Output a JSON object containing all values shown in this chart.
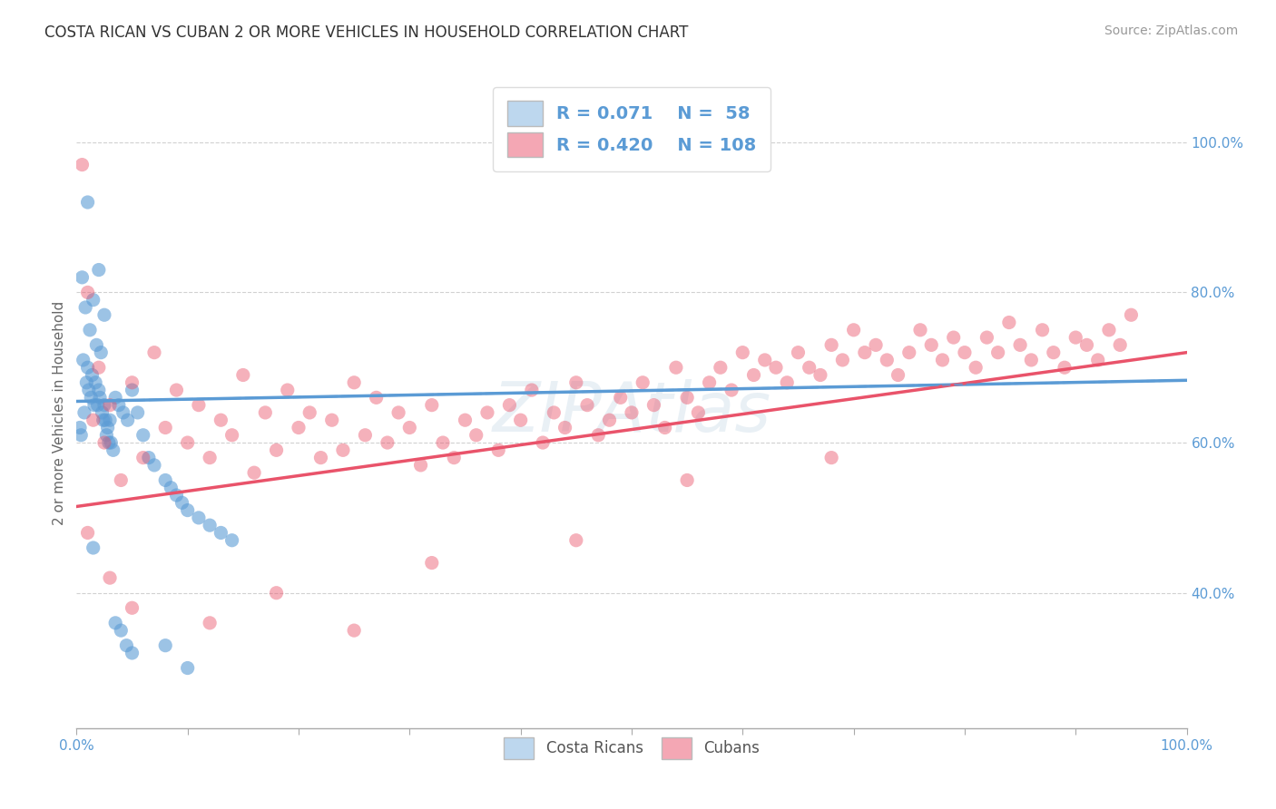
{
  "title": "COSTA RICAN VS CUBAN 2 OR MORE VEHICLES IN HOUSEHOLD CORRELATION CHART",
  "source": "Source: ZipAtlas.com",
  "ylabel": "2 or more Vehicles in Household",
  "xlim": [
    0.0,
    1.0
  ],
  "ylim": [
    0.22,
    1.06
  ],
  "y_ticks": [
    0.4,
    0.6,
    0.8,
    1.0
  ],
  "y_tick_labels": [
    "40.0%",
    "60.0%",
    "80.0%",
    "100.0%"
  ],
  "blue_color": "#5b9bd5",
  "blue_fill": "#bdd7ee",
  "pink_color": "#e9536a",
  "pink_fill": "#f4a7b4",
  "blue_R": 0.071,
  "blue_N": 58,
  "pink_R": 0.42,
  "pink_N": 108,
  "background_color": "#ffffff",
  "grid_color": "#cccccc",
  "blue_x": [
    0.01,
    0.02,
    0.005,
    0.015,
    0.008,
    0.025,
    0.012,
    0.018,
    0.022,
    0.006,
    0.01,
    0.014,
    0.009,
    0.017,
    0.011,
    0.021,
    0.013,
    0.016,
    0.019,
    0.023,
    0.007,
    0.024,
    0.026,
    0.028,
    0.003,
    0.004,
    0.027,
    0.029,
    0.031,
    0.033,
    0.035,
    0.038,
    0.042,
    0.046,
    0.05,
    0.055,
    0.06,
    0.065,
    0.07,
    0.08,
    0.085,
    0.09,
    0.095,
    0.1,
    0.11,
    0.12,
    0.13,
    0.14,
    0.015,
    0.02,
    0.025,
    0.03,
    0.035,
    0.04,
    0.045,
    0.05,
    0.08,
    0.1
  ],
  "blue_y": [
    0.92,
    0.83,
    0.82,
    0.79,
    0.78,
    0.77,
    0.75,
    0.73,
    0.72,
    0.71,
    0.7,
    0.69,
    0.68,
    0.68,
    0.67,
    0.66,
    0.66,
    0.65,
    0.65,
    0.64,
    0.64,
    0.63,
    0.63,
    0.62,
    0.62,
    0.61,
    0.61,
    0.6,
    0.6,
    0.59,
    0.66,
    0.65,
    0.64,
    0.63,
    0.67,
    0.64,
    0.61,
    0.58,
    0.57,
    0.55,
    0.54,
    0.53,
    0.52,
    0.51,
    0.5,
    0.49,
    0.48,
    0.47,
    0.46,
    0.67,
    0.65,
    0.63,
    0.36,
    0.35,
    0.33,
    0.32,
    0.33,
    0.3
  ],
  "pink_x": [
    0.005,
    0.01,
    0.015,
    0.02,
    0.025,
    0.03,
    0.04,
    0.05,
    0.06,
    0.07,
    0.08,
    0.09,
    0.1,
    0.11,
    0.12,
    0.13,
    0.14,
    0.15,
    0.16,
    0.17,
    0.18,
    0.19,
    0.2,
    0.21,
    0.22,
    0.23,
    0.24,
    0.25,
    0.26,
    0.27,
    0.28,
    0.29,
    0.3,
    0.31,
    0.32,
    0.33,
    0.34,
    0.35,
    0.36,
    0.37,
    0.38,
    0.39,
    0.4,
    0.41,
    0.42,
    0.43,
    0.44,
    0.45,
    0.46,
    0.47,
    0.48,
    0.49,
    0.5,
    0.51,
    0.52,
    0.53,
    0.54,
    0.55,
    0.56,
    0.57,
    0.58,
    0.59,
    0.6,
    0.61,
    0.62,
    0.63,
    0.64,
    0.65,
    0.66,
    0.67,
    0.68,
    0.69,
    0.7,
    0.71,
    0.72,
    0.73,
    0.74,
    0.75,
    0.76,
    0.77,
    0.78,
    0.79,
    0.8,
    0.81,
    0.82,
    0.83,
    0.84,
    0.85,
    0.86,
    0.87,
    0.88,
    0.89,
    0.9,
    0.91,
    0.92,
    0.93,
    0.94,
    0.95,
    0.01,
    0.03,
    0.05,
    0.12,
    0.18,
    0.25,
    0.32,
    0.45,
    0.55,
    0.68
  ],
  "pink_y": [
    0.97,
    0.8,
    0.63,
    0.7,
    0.6,
    0.65,
    0.55,
    0.68,
    0.58,
    0.72,
    0.62,
    0.67,
    0.6,
    0.65,
    0.58,
    0.63,
    0.61,
    0.69,
    0.56,
    0.64,
    0.59,
    0.67,
    0.62,
    0.64,
    0.58,
    0.63,
    0.59,
    0.68,
    0.61,
    0.66,
    0.6,
    0.64,
    0.62,
    0.57,
    0.65,
    0.6,
    0.58,
    0.63,
    0.61,
    0.64,
    0.59,
    0.65,
    0.63,
    0.67,
    0.6,
    0.64,
    0.62,
    0.68,
    0.65,
    0.61,
    0.63,
    0.66,
    0.64,
    0.68,
    0.65,
    0.62,
    0.7,
    0.66,
    0.64,
    0.68,
    0.7,
    0.67,
    0.72,
    0.69,
    0.71,
    0.7,
    0.68,
    0.72,
    0.7,
    0.69,
    0.73,
    0.71,
    0.75,
    0.72,
    0.73,
    0.71,
    0.69,
    0.72,
    0.75,
    0.73,
    0.71,
    0.74,
    0.72,
    0.7,
    0.74,
    0.72,
    0.76,
    0.73,
    0.71,
    0.75,
    0.72,
    0.7,
    0.74,
    0.73,
    0.71,
    0.75,
    0.73,
    0.77,
    0.48,
    0.42,
    0.38,
    0.36,
    0.4,
    0.35,
    0.44,
    0.47,
    0.55,
    0.58
  ]
}
